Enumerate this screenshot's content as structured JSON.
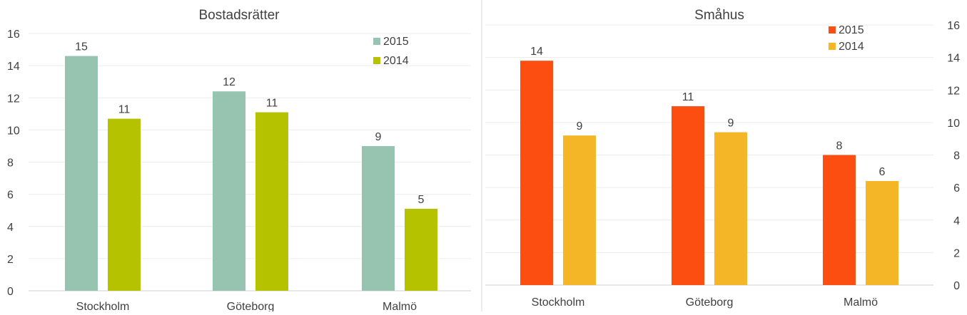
{
  "chart_data": [
    {
      "type": "bar",
      "title": "Bostadsrätter",
      "categories": [
        "Stockholm",
        "Göteborg",
        "Malmö"
      ],
      "series": [
        {
          "name": "2015",
          "values": [
            14.6,
            12.4,
            9.0
          ],
          "labels": [
            "15",
            "12",
            "9"
          ],
          "color": "#96c4b0"
        },
        {
          "name": "2014",
          "values": [
            10.7,
            11.1,
            5.1
          ],
          "labels": [
            "11",
            "11",
            "5"
          ],
          "color": "#b5c200"
        }
      ],
      "ylim": [
        0,
        16
      ],
      "yticks": [
        0,
        2,
        4,
        6,
        8,
        10,
        12,
        14,
        16
      ],
      "y_axis_side": "left",
      "grid": true,
      "legend": "top-right"
    },
    {
      "type": "bar",
      "title": "Småhus",
      "categories": [
        "Stockholm",
        "Göteborg",
        "Malmö"
      ],
      "series": [
        {
          "name": "2015",
          "values": [
            13.8,
            11.0,
            8.0
          ],
          "labels": [
            "14",
            "11",
            "8"
          ],
          "color": "#fd4e12"
        },
        {
          "name": "2014",
          "values": [
            9.2,
            9.4,
            6.4
          ],
          "labels": [
            "9",
            "9",
            "6"
          ],
          "color": "#f4b626"
        }
      ],
      "ylim": [
        0,
        16
      ],
      "yticks": [
        0,
        2,
        4,
        6,
        8,
        10,
        12,
        14,
        16
      ],
      "y_axis_side": "right",
      "grid": true,
      "legend": "top-right"
    }
  ]
}
